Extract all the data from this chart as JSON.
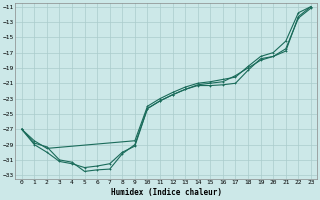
{
  "xlabel": "Humidex (Indice chaleur)",
  "xlim": [
    -0.5,
    23.5
  ],
  "ylim": [
    -33.5,
    -10.5
  ],
  "yticks": [
    -11,
    -13,
    -15,
    -17,
    -19,
    -21,
    -23,
    -25,
    -27,
    -29,
    -31,
    -33
  ],
  "xticks": [
    0,
    1,
    2,
    3,
    4,
    5,
    6,
    7,
    8,
    9,
    10,
    11,
    12,
    13,
    14,
    15,
    16,
    17,
    18,
    19,
    20,
    21,
    22,
    23
  ],
  "bg_color": "#cce8e8",
  "grid_color": "#aacccc",
  "line_color": "#1a6b5a",
  "line1_x": [
    0,
    1,
    2,
    3,
    4,
    5,
    6,
    7,
    8,
    9,
    10,
    11,
    12,
    13,
    14,
    15,
    16,
    17,
    18,
    19,
    20,
    21,
    22,
    23
  ],
  "line1_y": [
    -27.0,
    -28.8,
    -29.3,
    -31.0,
    -31.3,
    -32.5,
    -32.3,
    -32.2,
    -30.2,
    -29.0,
    -24.3,
    -23.3,
    -22.5,
    -21.8,
    -21.3,
    -21.3,
    -21.2,
    -21.0,
    -19.3,
    -17.8,
    -17.5,
    -16.8,
    -12.3,
    -11.0
  ],
  "line2_x": [
    0,
    1,
    2,
    9,
    10,
    11,
    12,
    13,
    14,
    15,
    16,
    17,
    18,
    19,
    20,
    21,
    22,
    23
  ],
  "line2_y": [
    -27.0,
    -28.5,
    -29.5,
    -28.5,
    -24.0,
    -23.0,
    -22.2,
    -21.5,
    -21.0,
    -20.8,
    -20.5,
    -20.2,
    -18.8,
    -17.5,
    -17.0,
    -15.5,
    -11.8,
    -11.0
  ],
  "line3_x": [
    0,
    1,
    2,
    3,
    4,
    5,
    6,
    7,
    8,
    9,
    10,
    11,
    12,
    13,
    14,
    15,
    16,
    17,
    18,
    19,
    20,
    21,
    22,
    23
  ],
  "line3_y": [
    -27.0,
    -29.0,
    -30.0,
    -31.2,
    -31.5,
    -32.0,
    -31.8,
    -31.5,
    -30.0,
    -29.2,
    -24.3,
    -23.3,
    -22.5,
    -21.8,
    -21.2,
    -21.0,
    -20.8,
    -20.0,
    -19.0,
    -18.0,
    -17.5,
    -16.5,
    -12.5,
    -11.2
  ]
}
